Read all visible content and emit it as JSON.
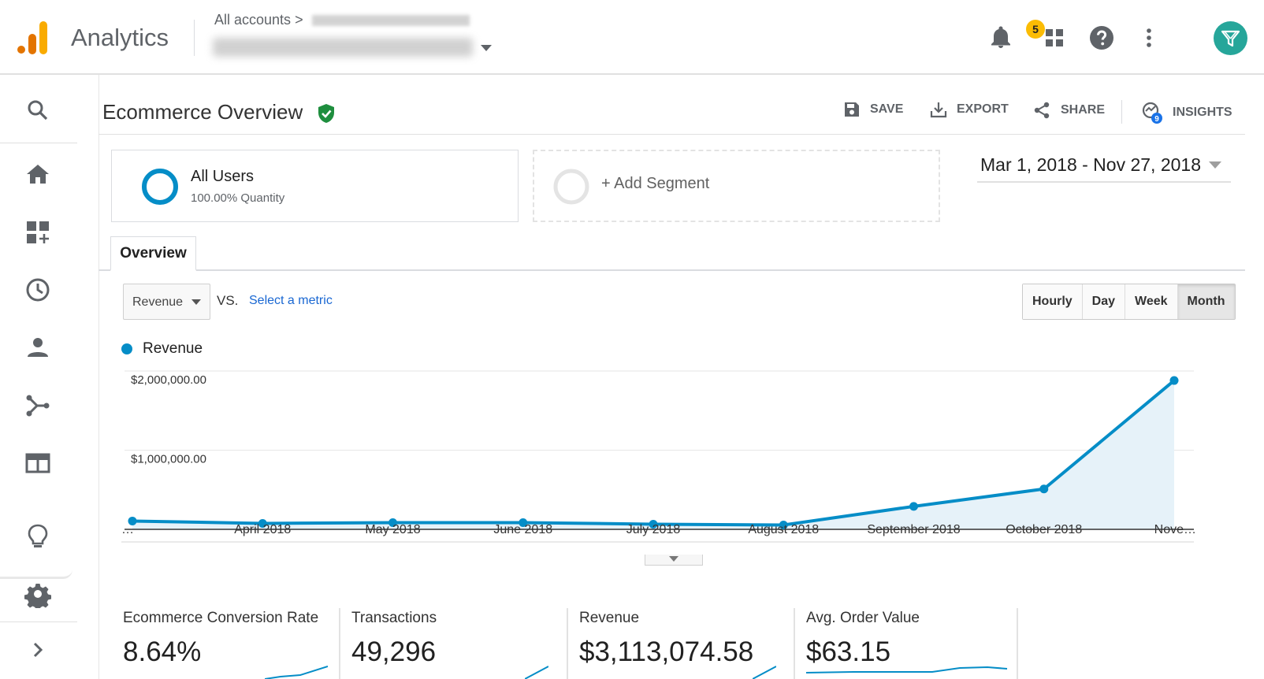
{
  "header": {
    "app_title": "Analytics",
    "breadcrumb_root": "All accounts",
    "breadcrumb_sep": ">",
    "notification_count": "5"
  },
  "sidebar": {
    "items": [
      "search-icon",
      "home-icon",
      "customization-icon",
      "realtime-icon",
      "audience-icon",
      "acquisition-icon",
      "behavior-icon",
      "discover-icon",
      "admin-icon",
      "expand-icon"
    ]
  },
  "report": {
    "title": "Ecommerce Overview",
    "actions": {
      "save": "SAVE",
      "export": "EXPORT",
      "share": "SHARE",
      "insights": "INSIGHTS",
      "insights_count": "9"
    }
  },
  "segments": {
    "primary_name": "All Users",
    "primary_sub": "100.00% Quantity",
    "add_label": "+ Add Segment"
  },
  "date_range": "Mar 1, 2018 - Nov 27, 2018",
  "tabs": {
    "overview": "Overview"
  },
  "metric_controls": {
    "selected_metric": "Revenue",
    "vs": "VS.",
    "select_metric": "Select a metric",
    "granularity": [
      "Hourly",
      "Day",
      "Week",
      "Month"
    ],
    "active_granularity": "Month"
  },
  "colors": {
    "series": "#058dc7",
    "area": "#e6f2f9"
  },
  "chart_data": {
    "type": "area",
    "legend": "Revenue",
    "x": [
      "…",
      "April 2018",
      "May 2018",
      "June 2018",
      "July 2018",
      "August 2018",
      "September 2018",
      "October 2018",
      "Nove…"
    ],
    "series": [
      {
        "name": "Revenue",
        "values": [
          105000,
          75000,
          85000,
          85000,
          65000,
          55000,
          290000,
          510000,
          1880000
        ]
      }
    ],
    "yticks": [
      "$1,000,000.00",
      "$2,000,000.00"
    ],
    "ytick_values": [
      1000000,
      2000000
    ],
    "ylim": [
      0,
      2000000
    ],
    "grid": true
  },
  "scorecards": [
    {
      "label": "Ecommerce Conversion Rate",
      "value": "8.64%"
    },
    {
      "label": "Transactions",
      "value": "49,296"
    },
    {
      "label": "Revenue",
      "value": "$3,113,074.58"
    },
    {
      "label": "Avg. Order Value",
      "value": "$63.15"
    }
  ]
}
